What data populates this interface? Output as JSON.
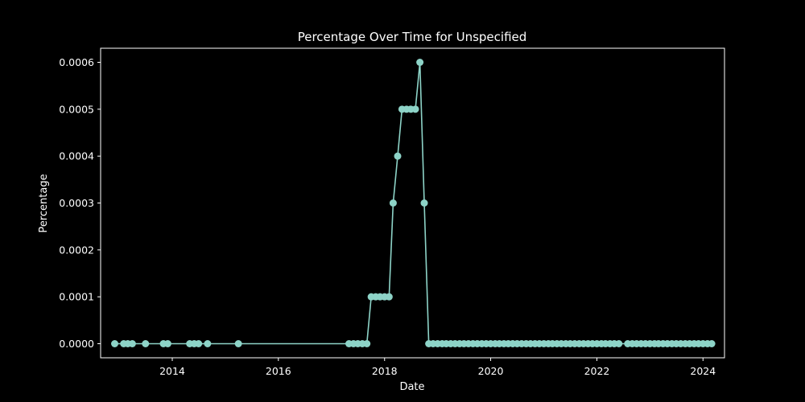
{
  "chart_data": {
    "type": "line",
    "title": "Percentage Over Time for Unspecified",
    "xlabel": "Date",
    "ylabel": "Percentage",
    "xlim": [
      "2012-08-26",
      "2024-05-28"
    ],
    "ylim": [
      -3e-05,
      0.00063
    ],
    "x_ticks": [
      {
        "label": "2014",
        "date": "2014-01-01"
      },
      {
        "label": "2016",
        "date": "2016-01-01"
      },
      {
        "label": "2018",
        "date": "2018-01-01"
      },
      {
        "label": "2020",
        "date": "2020-01-01"
      },
      {
        "label": "2022",
        "date": "2022-01-01"
      },
      {
        "label": "2024",
        "date": "2024-01-01"
      }
    ],
    "y_ticks": [
      {
        "label": "0.0000",
        "value": 0
      },
      {
        "label": "0.0001",
        "value": 0.0001
      },
      {
        "label": "0.0002",
        "value": 0.0002
      },
      {
        "label": "0.0003",
        "value": 0.0003
      },
      {
        "label": "0.0004",
        "value": 0.0004
      },
      {
        "label": "0.0005",
        "value": 0.0005
      },
      {
        "label": "0.0006",
        "value": 0.0006
      }
    ],
    "grid": false,
    "series": [
      {
        "color": "#8dd3c7",
        "points": [
          [
            "2012-12-01",
            0
          ],
          [
            "2013-02-01",
            0
          ],
          [
            "2013-03-01",
            0
          ],
          [
            "2013-04-01",
            0
          ],
          [
            "2013-07-01",
            0
          ],
          [
            "2013-11-01",
            0
          ],
          [
            "2013-12-01",
            0
          ],
          [
            "2014-05-01",
            0
          ],
          [
            "2014-06-01",
            0
          ],
          [
            "2014-07-01",
            0
          ],
          [
            "2014-09-01",
            0
          ],
          [
            "2015-04-01",
            0
          ],
          [
            "2017-05-01",
            0
          ],
          [
            "2017-06-01",
            0
          ],
          [
            "2017-07-01",
            0
          ],
          [
            "2017-08-01",
            0
          ],
          [
            "2017-09-01",
            0
          ],
          [
            "2017-10-01",
            0.0001
          ],
          [
            "2017-11-01",
            0.0001
          ],
          [
            "2017-12-01",
            0.0001
          ],
          [
            "2018-01-01",
            0.0001
          ],
          [
            "2018-02-01",
            0.0001
          ],
          [
            "2018-03-01",
            0.0003
          ],
          [
            "2018-04-01",
            0.0004
          ],
          [
            "2018-05-01",
            0.0005
          ],
          [
            "2018-06-01",
            0.0005
          ],
          [
            "2018-07-01",
            0.0005
          ],
          [
            "2018-08-01",
            0.0005
          ],
          [
            "2018-09-01",
            0.0006
          ],
          [
            "2018-10-01",
            0.0003
          ],
          [
            "2018-11-01",
            0
          ],
          [
            "2018-12-01",
            0
          ],
          [
            "2019-01-01",
            0
          ],
          [
            "2019-02-01",
            0
          ],
          [
            "2019-03-01",
            0
          ],
          [
            "2019-04-01",
            0
          ],
          [
            "2019-05-01",
            0
          ],
          [
            "2019-06-01",
            0
          ],
          [
            "2019-07-01",
            0
          ],
          [
            "2019-08-01",
            0
          ],
          [
            "2019-09-01",
            0
          ],
          [
            "2019-10-01",
            0
          ],
          [
            "2019-11-01",
            0
          ],
          [
            "2019-12-01",
            0
          ],
          [
            "2020-01-01",
            0
          ],
          [
            "2020-02-01",
            0
          ],
          [
            "2020-03-01",
            0
          ],
          [
            "2020-04-01",
            0
          ],
          [
            "2020-05-01",
            0
          ],
          [
            "2020-06-01",
            0
          ],
          [
            "2020-07-01",
            0
          ],
          [
            "2020-08-01",
            0
          ],
          [
            "2020-09-01",
            0
          ],
          [
            "2020-10-01",
            0
          ],
          [
            "2020-11-01",
            0
          ],
          [
            "2020-12-01",
            0
          ],
          [
            "2021-01-01",
            0
          ],
          [
            "2021-02-01",
            0
          ],
          [
            "2021-03-01",
            0
          ],
          [
            "2021-04-01",
            0
          ],
          [
            "2021-05-01",
            0
          ],
          [
            "2021-06-01",
            0
          ],
          [
            "2021-07-01",
            0
          ],
          [
            "2021-08-01",
            0
          ],
          [
            "2021-09-01",
            0
          ],
          [
            "2021-10-01",
            0
          ],
          [
            "2021-11-01",
            0
          ],
          [
            "2021-12-01",
            0
          ],
          [
            "2022-01-01",
            0
          ],
          [
            "2022-02-01",
            0
          ],
          [
            "2022-03-01",
            0
          ],
          [
            "2022-04-01",
            0
          ],
          [
            "2022-05-01",
            0
          ],
          [
            "2022-06-01",
            0
          ],
          [
            "2022-08-01",
            0
          ],
          [
            "2022-09-01",
            0
          ],
          [
            "2022-10-01",
            0
          ],
          [
            "2022-11-01",
            0
          ],
          [
            "2022-12-01",
            0
          ],
          [
            "2023-01-01",
            0
          ],
          [
            "2023-02-01",
            0
          ],
          [
            "2023-03-01",
            0
          ],
          [
            "2023-04-01",
            0
          ],
          [
            "2023-05-01",
            0
          ],
          [
            "2023-06-01",
            0
          ],
          [
            "2023-07-01",
            0
          ],
          [
            "2023-08-01",
            0
          ],
          [
            "2023-09-01",
            0
          ],
          [
            "2023-10-01",
            0
          ],
          [
            "2023-11-01",
            0
          ],
          [
            "2023-12-01",
            0
          ],
          [
            "2024-01-01",
            0
          ],
          [
            "2024-02-01",
            0
          ],
          [
            "2024-03-01",
            0
          ]
        ]
      }
    ]
  }
}
